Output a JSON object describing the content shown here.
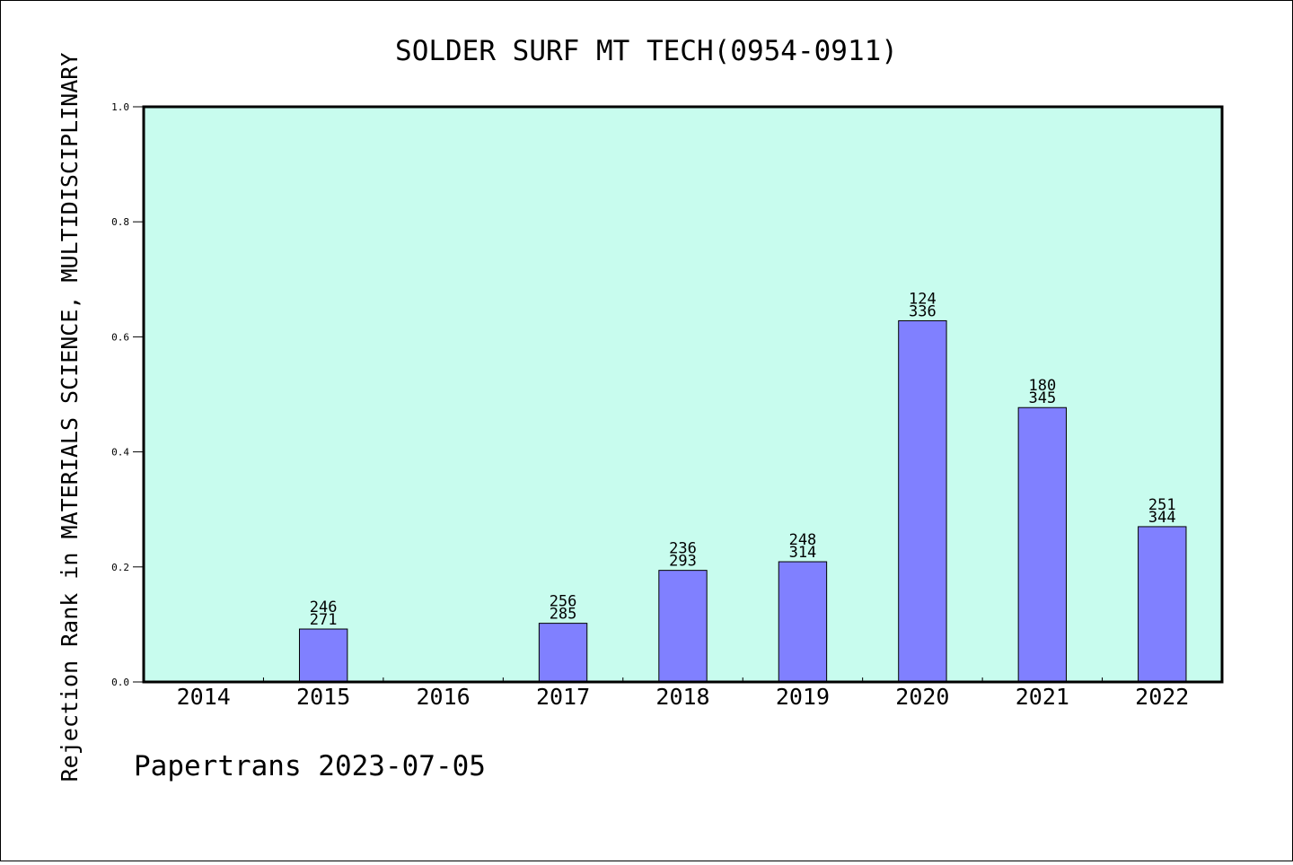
{
  "chart_data": {
    "type": "bar",
    "title": "SOLDER SURF MT TECH(0954-0911)",
    "ylabel": "Rejection Rank in MATERIALS SCIENCE, MULTIDISCIPLINARY",
    "xlabel": "",
    "categories": [
      "2014",
      "2015",
      "2016",
      "2017",
      "2018",
      "2019",
      "2020",
      "2021",
      "2022"
    ],
    "values": [
      null,
      0.092,
      null,
      0.102,
      0.194,
      0.209,
      0.628,
      0.477,
      0.27
    ],
    "label_top": [
      null,
      "246",
      null,
      "256",
      "236",
      "248",
      "124",
      "180",
      "251"
    ],
    "label_bottom": [
      null,
      "271",
      null,
      "285",
      "293",
      "314",
      "336",
      "345",
      "344"
    ],
    "ylim": [
      0,
      1.0
    ],
    "yticks": [
      "0.0",
      "0.2",
      "0.4",
      "0.6",
      "0.8",
      "1.0"
    ],
    "grid": false,
    "colors": {
      "plot_background": "#c8fcee",
      "bar_fill": "#8080ff",
      "bar_stroke": "#000000"
    }
  },
  "footer": "Papertrans 2023-07-05"
}
